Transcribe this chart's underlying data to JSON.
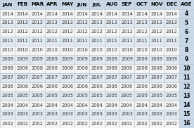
{
  "columns": [
    "JAN",
    "FEB",
    "MAR",
    "APR",
    "MAY",
    "JUN",
    "JUL",
    "AUG",
    "SEP",
    "OCT",
    "NOV",
    "DEC",
    "AGE"
  ],
  "rows": [
    [
      "2014",
      "2014",
      "2014",
      "2014",
      "2014",
      "2014",
      "2014",
      "2014",
      "2014",
      "2014",
      "2014",
      "2014",
      "4"
    ],
    [
      "2013",
      "2013",
      "2013",
      "2013",
      "2013",
      "2013",
      "2013",
      "2013",
      "2013",
      "2013",
      "2013",
      "2013",
      "5"
    ],
    [
      "2012",
      "2012",
      "2012",
      "2012",
      "2012",
      "2012",
      "2012",
      "2012",
      "2012",
      "2012",
      "2012",
      "2012",
      "6"
    ],
    [
      "2011",
      "2011",
      "2011",
      "2011",
      "2011",
      "2011",
      "2011",
      "2011",
      "2011",
      "2011",
      "2011",
      "2011",
      "7"
    ],
    [
      "2010",
      "2010",
      "2010",
      "2010",
      "2010",
      "2010",
      "2010",
      "2010",
      "2010",
      "2010",
      "2010",
      "2010",
      "8"
    ],
    [
      "2009",
      "2009",
      "2009",
      "2009",
      "2009",
      "2009",
      "2009",
      "2009",
      "2009",
      "2009",
      "2009",
      "2009",
      "9"
    ],
    [
      "2008",
      "2008",
      "2008",
      "2008",
      "2008",
      "2008",
      "2008",
      "2008",
      "2008",
      "2008",
      "2008",
      "2008",
      "10"
    ],
    [
      "2007",
      "2007",
      "2007",
      "2007",
      "2007",
      "2007",
      "2007",
      "2007",
      "2007",
      "2007",
      "2007",
      "2007",
      "11"
    ],
    [
      "2006",
      "2006",
      "2006",
      "2006",
      "2006",
      "2006",
      "2006",
      "2006",
      "2006",
      "2006",
      "2006",
      "2006",
      "12"
    ],
    [
      "2005",
      "2005",
      "2005",
      "2005",
      "2005",
      "2005",
      "2005",
      "2005",
      "2005",
      "2005",
      "2005",
      "2005",
      "13"
    ],
    [
      "2004",
      "2004",
      "2004",
      "2004",
      "2004",
      "2004",
      "2004",
      "2004",
      "2004",
      "2004",
      "2004",
      "2004",
      "14"
    ],
    [
      "2003",
      "2003",
      "2003",
      "2003",
      "2003",
      "2003",
      "2003",
      "2003",
      "2003",
      "2003",
      "2003",
      "2003",
      "15"
    ],
    [
      "2002",
      "2002",
      "2002",
      "2002",
      "2002",
      "2002",
      "2002",
      "2002",
      "2002",
      "2002",
      "2002",
      "2002",
      "16"
    ]
  ],
  "header_bg": "#c8d8e8",
  "age_col_bg": "#c8d8e8",
  "row_bg_odd": "#f5f5f5",
  "row_bg_even": "#e0e8f0",
  "border_color": "#c0c8d0",
  "header_font_size": 5.2,
  "cell_font_size": 4.8,
  "age_font_size": 5.5,
  "header_text_color": "#000000",
  "cell_text_color": "#303030",
  "age_text_color": "#000000",
  "fig_bg": "#ffffff",
  "line_width": 0.5
}
